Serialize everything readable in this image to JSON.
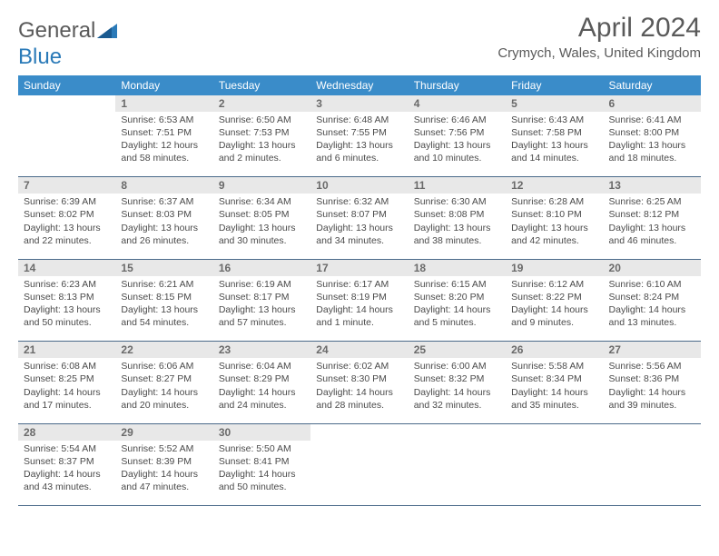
{
  "logo": {
    "general": "General",
    "blue": "Blue"
  },
  "header": {
    "title": "April 2024",
    "location": "Crymych, Wales, United Kingdom"
  },
  "colors": {
    "header_bg": "#3a8cc9",
    "header_fg": "#ffffff",
    "daynum_bg": "#e8e8e8",
    "rule": "#4a6a8a",
    "text": "#4a4a4a",
    "logo_blue": "#2a7ab8"
  },
  "weekdays": [
    "Sunday",
    "Monday",
    "Tuesday",
    "Wednesday",
    "Thursday",
    "Friday",
    "Saturday"
  ],
  "weeks": [
    {
      "nums": [
        "",
        "1",
        "2",
        "3",
        "4",
        "5",
        "6"
      ],
      "cells": [
        null,
        {
          "sunrise": "Sunrise: 6:53 AM",
          "sunset": "Sunset: 7:51 PM",
          "day1": "Daylight: 12 hours",
          "day2": "and 58 minutes."
        },
        {
          "sunrise": "Sunrise: 6:50 AM",
          "sunset": "Sunset: 7:53 PM",
          "day1": "Daylight: 13 hours",
          "day2": "and 2 minutes."
        },
        {
          "sunrise": "Sunrise: 6:48 AM",
          "sunset": "Sunset: 7:55 PM",
          "day1": "Daylight: 13 hours",
          "day2": "and 6 minutes."
        },
        {
          "sunrise": "Sunrise: 6:46 AM",
          "sunset": "Sunset: 7:56 PM",
          "day1": "Daylight: 13 hours",
          "day2": "and 10 minutes."
        },
        {
          "sunrise": "Sunrise: 6:43 AM",
          "sunset": "Sunset: 7:58 PM",
          "day1": "Daylight: 13 hours",
          "day2": "and 14 minutes."
        },
        {
          "sunrise": "Sunrise: 6:41 AM",
          "sunset": "Sunset: 8:00 PM",
          "day1": "Daylight: 13 hours",
          "day2": "and 18 minutes."
        }
      ]
    },
    {
      "nums": [
        "7",
        "8",
        "9",
        "10",
        "11",
        "12",
        "13"
      ],
      "cells": [
        {
          "sunrise": "Sunrise: 6:39 AM",
          "sunset": "Sunset: 8:02 PM",
          "day1": "Daylight: 13 hours",
          "day2": "and 22 minutes."
        },
        {
          "sunrise": "Sunrise: 6:37 AM",
          "sunset": "Sunset: 8:03 PM",
          "day1": "Daylight: 13 hours",
          "day2": "and 26 minutes."
        },
        {
          "sunrise": "Sunrise: 6:34 AM",
          "sunset": "Sunset: 8:05 PM",
          "day1": "Daylight: 13 hours",
          "day2": "and 30 minutes."
        },
        {
          "sunrise": "Sunrise: 6:32 AM",
          "sunset": "Sunset: 8:07 PM",
          "day1": "Daylight: 13 hours",
          "day2": "and 34 minutes."
        },
        {
          "sunrise": "Sunrise: 6:30 AM",
          "sunset": "Sunset: 8:08 PM",
          "day1": "Daylight: 13 hours",
          "day2": "and 38 minutes."
        },
        {
          "sunrise": "Sunrise: 6:28 AM",
          "sunset": "Sunset: 8:10 PM",
          "day1": "Daylight: 13 hours",
          "day2": "and 42 minutes."
        },
        {
          "sunrise": "Sunrise: 6:25 AM",
          "sunset": "Sunset: 8:12 PM",
          "day1": "Daylight: 13 hours",
          "day2": "and 46 minutes."
        }
      ]
    },
    {
      "nums": [
        "14",
        "15",
        "16",
        "17",
        "18",
        "19",
        "20"
      ],
      "cells": [
        {
          "sunrise": "Sunrise: 6:23 AM",
          "sunset": "Sunset: 8:13 PM",
          "day1": "Daylight: 13 hours",
          "day2": "and 50 minutes."
        },
        {
          "sunrise": "Sunrise: 6:21 AM",
          "sunset": "Sunset: 8:15 PM",
          "day1": "Daylight: 13 hours",
          "day2": "and 54 minutes."
        },
        {
          "sunrise": "Sunrise: 6:19 AM",
          "sunset": "Sunset: 8:17 PM",
          "day1": "Daylight: 13 hours",
          "day2": "and 57 minutes."
        },
        {
          "sunrise": "Sunrise: 6:17 AM",
          "sunset": "Sunset: 8:19 PM",
          "day1": "Daylight: 14 hours",
          "day2": "and 1 minute."
        },
        {
          "sunrise": "Sunrise: 6:15 AM",
          "sunset": "Sunset: 8:20 PM",
          "day1": "Daylight: 14 hours",
          "day2": "and 5 minutes."
        },
        {
          "sunrise": "Sunrise: 6:12 AM",
          "sunset": "Sunset: 8:22 PM",
          "day1": "Daylight: 14 hours",
          "day2": "and 9 minutes."
        },
        {
          "sunrise": "Sunrise: 6:10 AM",
          "sunset": "Sunset: 8:24 PM",
          "day1": "Daylight: 14 hours",
          "day2": "and 13 minutes."
        }
      ]
    },
    {
      "nums": [
        "21",
        "22",
        "23",
        "24",
        "25",
        "26",
        "27"
      ],
      "cells": [
        {
          "sunrise": "Sunrise: 6:08 AM",
          "sunset": "Sunset: 8:25 PM",
          "day1": "Daylight: 14 hours",
          "day2": "and 17 minutes."
        },
        {
          "sunrise": "Sunrise: 6:06 AM",
          "sunset": "Sunset: 8:27 PM",
          "day1": "Daylight: 14 hours",
          "day2": "and 20 minutes."
        },
        {
          "sunrise": "Sunrise: 6:04 AM",
          "sunset": "Sunset: 8:29 PM",
          "day1": "Daylight: 14 hours",
          "day2": "and 24 minutes."
        },
        {
          "sunrise": "Sunrise: 6:02 AM",
          "sunset": "Sunset: 8:30 PM",
          "day1": "Daylight: 14 hours",
          "day2": "and 28 minutes."
        },
        {
          "sunrise": "Sunrise: 6:00 AM",
          "sunset": "Sunset: 8:32 PM",
          "day1": "Daylight: 14 hours",
          "day2": "and 32 minutes."
        },
        {
          "sunrise": "Sunrise: 5:58 AM",
          "sunset": "Sunset: 8:34 PM",
          "day1": "Daylight: 14 hours",
          "day2": "and 35 minutes."
        },
        {
          "sunrise": "Sunrise: 5:56 AM",
          "sunset": "Sunset: 8:36 PM",
          "day1": "Daylight: 14 hours",
          "day2": "and 39 minutes."
        }
      ]
    },
    {
      "nums": [
        "28",
        "29",
        "30",
        "",
        "",
        "",
        ""
      ],
      "cells": [
        {
          "sunrise": "Sunrise: 5:54 AM",
          "sunset": "Sunset: 8:37 PM",
          "day1": "Daylight: 14 hours",
          "day2": "and 43 minutes."
        },
        {
          "sunrise": "Sunrise: 5:52 AM",
          "sunset": "Sunset: 8:39 PM",
          "day1": "Daylight: 14 hours",
          "day2": "and 47 minutes."
        },
        {
          "sunrise": "Sunrise: 5:50 AM",
          "sunset": "Sunset: 8:41 PM",
          "day1": "Daylight: 14 hours",
          "day2": "and 50 minutes."
        },
        null,
        null,
        null,
        null
      ]
    }
  ]
}
